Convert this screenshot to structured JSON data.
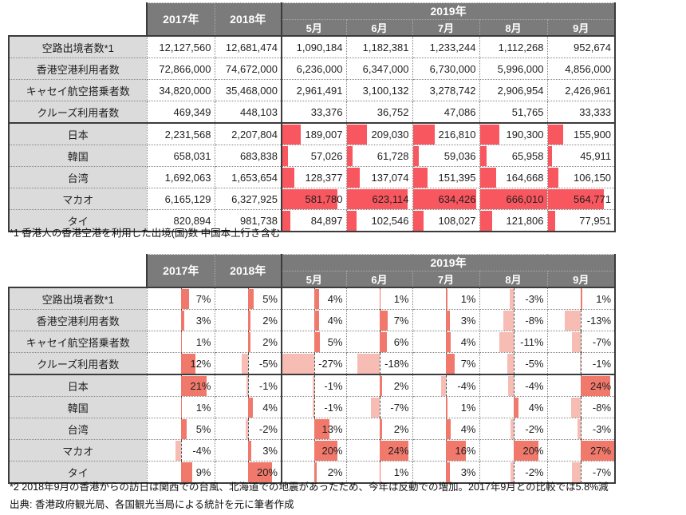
{
  "colors": {
    "header_bg": "#7b7b7b",
    "label_bg": "#dbdbdb",
    "bar_red": "#f8575f",
    "bar_pos": "#f0796b",
    "bar_neg": "#f7bdb4",
    "border_dark": "#3b3b3b"
  },
  "header": {
    "col_2017": "2017年",
    "col_2018": "2018年",
    "col_2019": "2019年",
    "months": [
      "5月",
      "6月",
      "7月",
      "8月",
      "9月"
    ]
  },
  "table1": {
    "description": "absolute visitor numbers with red data bars in 2019 month columns",
    "bar_scale_max": 666010,
    "rows": [
      {
        "label": "空路出境者数*1",
        "bars": false,
        "values": [
          "12,127,560",
          "12,681,474",
          "1,090,184",
          "1,182,381",
          "1,233,244",
          "1,112,268",
          "952,674"
        ]
      },
      {
        "label": "香港空港利用者数",
        "bars": false,
        "values": [
          "72,866,000",
          "74,672,000",
          "6,236,000",
          "6,347,000",
          "6,730,000",
          "5,996,000",
          "4,856,000"
        ]
      },
      {
        "label": "キャセイ航空搭乗者数",
        "bars": false,
        "values": [
          "34,820,000",
          "35,468,000",
          "2,961,491",
          "3,100,132",
          "3,278,742",
          "2,906,954",
          "2,426,961"
        ]
      },
      {
        "label": "クルーズ利用者数",
        "bars": false,
        "values": [
          "469,349",
          "448,103",
          "33,376",
          "36,752",
          "47,086",
          "51,765",
          "33,333"
        ]
      },
      {
        "label": "日本",
        "bars": true,
        "values": [
          "2,231,568",
          "2,207,804",
          "189,007",
          "209,030",
          "216,810",
          "190,300",
          "155,900"
        ]
      },
      {
        "label": "韓国",
        "bars": true,
        "values": [
          "658,031",
          "683,838",
          "57,026",
          "61,728",
          "59,036",
          "65,958",
          "45,911"
        ]
      },
      {
        "label": "台湾",
        "bars": true,
        "values": [
          "1,692,063",
          "1,653,654",
          "128,377",
          "137,074",
          "151,395",
          "164,668",
          "106,150"
        ]
      },
      {
        "label": "マカオ",
        "bars": true,
        "values": [
          "6,165,129",
          "6,327,925",
          "581,780",
          "623,114",
          "634,426",
          "666,010",
          "564,771"
        ]
      },
      {
        "label": "タイ",
        "bars": true,
        "values": [
          "820,894",
          "981,738",
          "84,897",
          "102,546",
          "108,027",
          "121,806",
          "77,951"
        ]
      }
    ]
  },
  "table2": {
    "description": "year-over-year percent change with centered-axis data bars",
    "bar_scale_max": 27,
    "rows": [
      {
        "label": "空路出境者数*1",
        "values": [
          7,
          5,
          4,
          1,
          1,
          -3,
          1
        ]
      },
      {
        "label": "香港空港利用者数",
        "values": [
          3,
          2,
          4,
          7,
          3,
          -8,
          -13
        ]
      },
      {
        "label": "キャセイ航空搭乗者数",
        "values": [
          1,
          2,
          5,
          6,
          4,
          -11,
          -7
        ]
      },
      {
        "label": "クルーズ利用者数",
        "values": [
          12,
          -5,
          -27,
          -18,
          7,
          -5,
          -1
        ]
      },
      {
        "label": "日本",
        "values": [
          21,
          -1,
          -1,
          2,
          -4,
          -4,
          24
        ]
      },
      {
        "label": "韓国",
        "values": [
          1,
          4,
          -1,
          -7,
          1,
          4,
          -8
        ]
      },
      {
        "label": "台湾",
        "values": [
          5,
          -2,
          13,
          2,
          4,
          -2,
          -3
        ]
      },
      {
        "label": "マカオ",
        "values": [
          -4,
          3,
          20,
          24,
          16,
          20,
          27
        ]
      },
      {
        "label": "タイ",
        "values": [
          9,
          20,
          2,
          1,
          3,
          -2,
          -7
        ]
      }
    ]
  },
  "notes": {
    "note1": "*1 香港人の香港空港を利用した出境(国)数  中国本土行き含む",
    "note2": "*2 2018年9月の香港からの訪日は関西での台風、北海道での地震があったため、今年は反動での増加。2017年9月との比較では5.8%減",
    "source": "出典: 香港政府観光局、各国観光当局による統計を元に筆者作成"
  }
}
